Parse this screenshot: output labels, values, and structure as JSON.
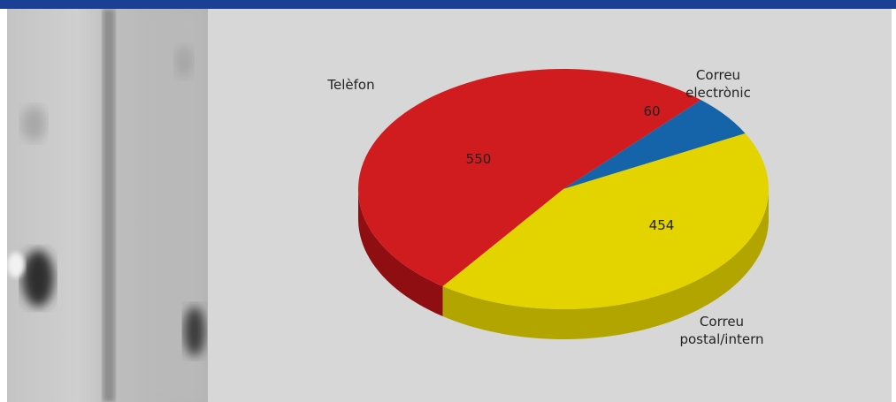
{
  "header": {
    "bar_color": "#1a3f95"
  },
  "colors": {
    "panel_bg": "#d7d7d7",
    "telefon": "#d01c1f",
    "email": "#1563a9",
    "postal": "#e3d400"
  },
  "chart_data": {
    "type": "pie",
    "title": "",
    "slices": [
      {
        "label": "Telèfon",
        "value": 550,
        "value_label": "550",
        "color": "#d01c1f",
        "side": "#8e0e12",
        "label_lines": [
          "Telèfon"
        ]
      },
      {
        "label": "Correu electrònic",
        "value": 60,
        "value_label": "60",
        "color": "#1563a9",
        "side": "#0c3f70",
        "label_lines": [
          "Correu",
          "electrònic"
        ]
      },
      {
        "label": "Correu postal/intern",
        "value": 454,
        "value_label": "454",
        "color": "#e3d400",
        "side": "#b3a500",
        "label_lines": [
          "Correu",
          "postal/intern"
        ]
      }
    ],
    "style": "3d-tilted",
    "legend": "none"
  }
}
